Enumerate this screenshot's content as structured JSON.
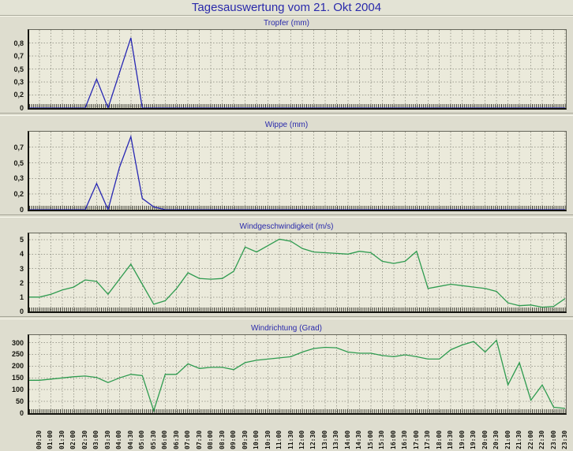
{
  "header": {
    "title": "Tagesauswertung vom 21. Okt 2004"
  },
  "colors": {
    "title_blue": "#2a2aab",
    "rain_line": "#2727b3",
    "wind_line": "#2e9b4f"
  },
  "chart_data": {
    "type": "line",
    "categories": [
      "00:30",
      "01:00",
      "01:30",
      "02:00",
      "02:30",
      "03:00",
      "03:30",
      "04:00",
      "04:30",
      "05:00",
      "05:30",
      "06:00",
      "06:30",
      "07:00",
      "07:30",
      "08:00",
      "08:30",
      "09:00",
      "09:30",
      "10:00",
      "10:30",
      "11:00",
      "11:30",
      "12:00",
      "12:30",
      "13:00",
      "13:30",
      "14:00",
      "14:30",
      "15:00",
      "15:30",
      "16:00",
      "16:30",
      "17:00",
      "17:30",
      "18:00",
      "18:30",
      "19:00",
      "19:30",
      "20:00",
      "20:30",
      "21:00",
      "21:30",
      "22:00",
      "22:30",
      "23:00",
      "23:30"
    ],
    "legend_position": "none",
    "grid": true,
    "series": [
      {
        "name": "Tropfer (mm)",
        "color": "#2727b3",
        "y_max": 1.0,
        "y_ticks": [
          {
            "v": 0,
            "label": "0"
          },
          {
            "v": 0.167,
            "label": "0,2"
          },
          {
            "v": 0.333,
            "label": "0,3"
          },
          {
            "v": 0.5,
            "label": "0,5"
          },
          {
            "v": 0.667,
            "label": "0,7"
          },
          {
            "v": 0.833,
            "label": "0,8"
          }
        ],
        "values": [
          0,
          0,
          0,
          0,
          0,
          0.37,
          0,
          0.45,
          0.9,
          0,
          0,
          0,
          0,
          0,
          0,
          0,
          0,
          0,
          0,
          0,
          0,
          0,
          0,
          0,
          0,
          0,
          0,
          0,
          0,
          0,
          0,
          0,
          0,
          0,
          0,
          0,
          0,
          0,
          0,
          0,
          0,
          0,
          0,
          0,
          0,
          0,
          0
        ]
      },
      {
        "name": "Wippe (mm)",
        "color": "#2727b3",
        "y_max": 0.833,
        "y_ticks": [
          {
            "v": 0,
            "label": "0"
          },
          {
            "v": 0.167,
            "label": "0,2"
          },
          {
            "v": 0.333,
            "label": "0,3"
          },
          {
            "v": 0.5,
            "label": "0,5"
          },
          {
            "v": 0.667,
            "label": "0,7"
          }
        ],
        "values": [
          0,
          0,
          0,
          0,
          0,
          0.28,
          0,
          0.45,
          0.78,
          0.12,
          0.03,
          0,
          0,
          0,
          0,
          0,
          0,
          0,
          0,
          0,
          0,
          0,
          0,
          0,
          0,
          0,
          0,
          0,
          0,
          0,
          0,
          0,
          0,
          0,
          0,
          0,
          0,
          0,
          0,
          0,
          0,
          0,
          0,
          0,
          0,
          0,
          0
        ]
      },
      {
        "name": "Windgeschwindigkeit (m/s)",
        "color": "#2e9b4f",
        "y_max": 5.45,
        "y_ticks": [
          {
            "v": 0,
            "label": "0"
          },
          {
            "v": 1,
            "label": "1"
          },
          {
            "v": 2,
            "label": "2"
          },
          {
            "v": 3,
            "label": "3"
          },
          {
            "v": 4,
            "label": "4"
          },
          {
            "v": 5,
            "label": "5"
          }
        ],
        "values": [
          1.0,
          1.2,
          1.5,
          1.7,
          2.2,
          2.1,
          1.2,
          2.25,
          3.3,
          1.9,
          0.5,
          0.75,
          1.6,
          2.7,
          2.3,
          2.25,
          2.3,
          2.8,
          4.5,
          4.15,
          4.6,
          5.05,
          4.9,
          4.4,
          4.15,
          4.1,
          4.05,
          4.0,
          4.2,
          4.1,
          3.5,
          3.35,
          3.5,
          4.2,
          1.6,
          1.75,
          1.9,
          1.8,
          1.7,
          1.6,
          1.4,
          0.6,
          0.4,
          0.45,
          0.3,
          0.35,
          0.9
        ]
      },
      {
        "name": "Windrichtung (Grad)",
        "color": "#2e9b4f",
        "y_max": 332,
        "y_ticks": [
          {
            "v": 0,
            "label": "0"
          },
          {
            "v": 50,
            "label": "50"
          },
          {
            "v": 100,
            "label": "100"
          },
          {
            "v": 150,
            "label": "150"
          },
          {
            "v": 200,
            "label": "200"
          },
          {
            "v": 250,
            "label": "250"
          },
          {
            "v": 300,
            "label": "300"
          }
        ],
        "values": [
          140,
          145,
          150,
          155,
          158,
          152,
          130,
          150,
          165,
          160,
          10,
          165,
          165,
          210,
          190,
          195,
          195,
          185,
          215,
          225,
          230,
          235,
          240,
          260,
          275,
          280,
          278,
          260,
          255,
          255,
          245,
          240,
          248,
          240,
          230,
          230,
          270,
          290,
          305,
          260,
          310,
          120,
          215,
          55,
          120,
          25,
          20
        ]
      }
    ]
  }
}
